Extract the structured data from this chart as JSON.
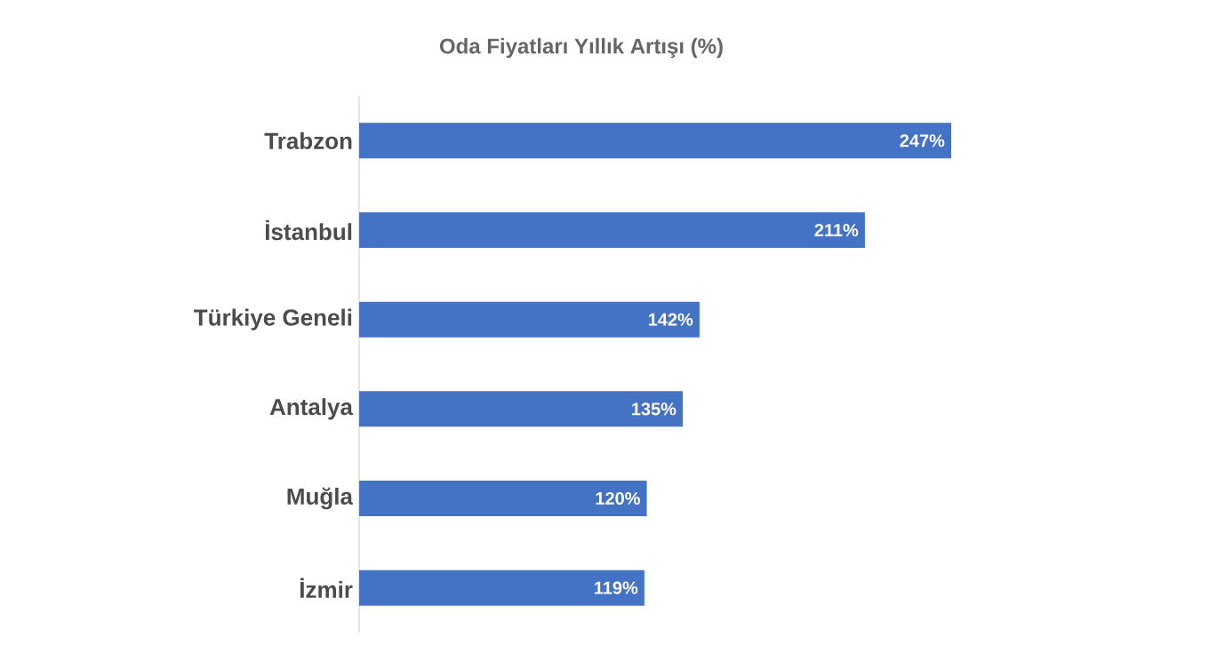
{
  "chart_data": {
    "type": "bar",
    "orientation": "horizontal",
    "title": "Oda Fiyatları Yıllık Artışı (%)",
    "categories": [
      "Trabzon",
      "İstanbul",
      "Türkiye Geneli",
      "Antalya",
      "Muğla",
      "İzmir"
    ],
    "values": [
      247,
      211,
      142,
      135,
      120,
      119
    ],
    "value_labels": [
      "247%",
      "211%",
      "142%",
      "135%",
      "120%",
      "119%"
    ],
    "color": "#4472c4"
  }
}
